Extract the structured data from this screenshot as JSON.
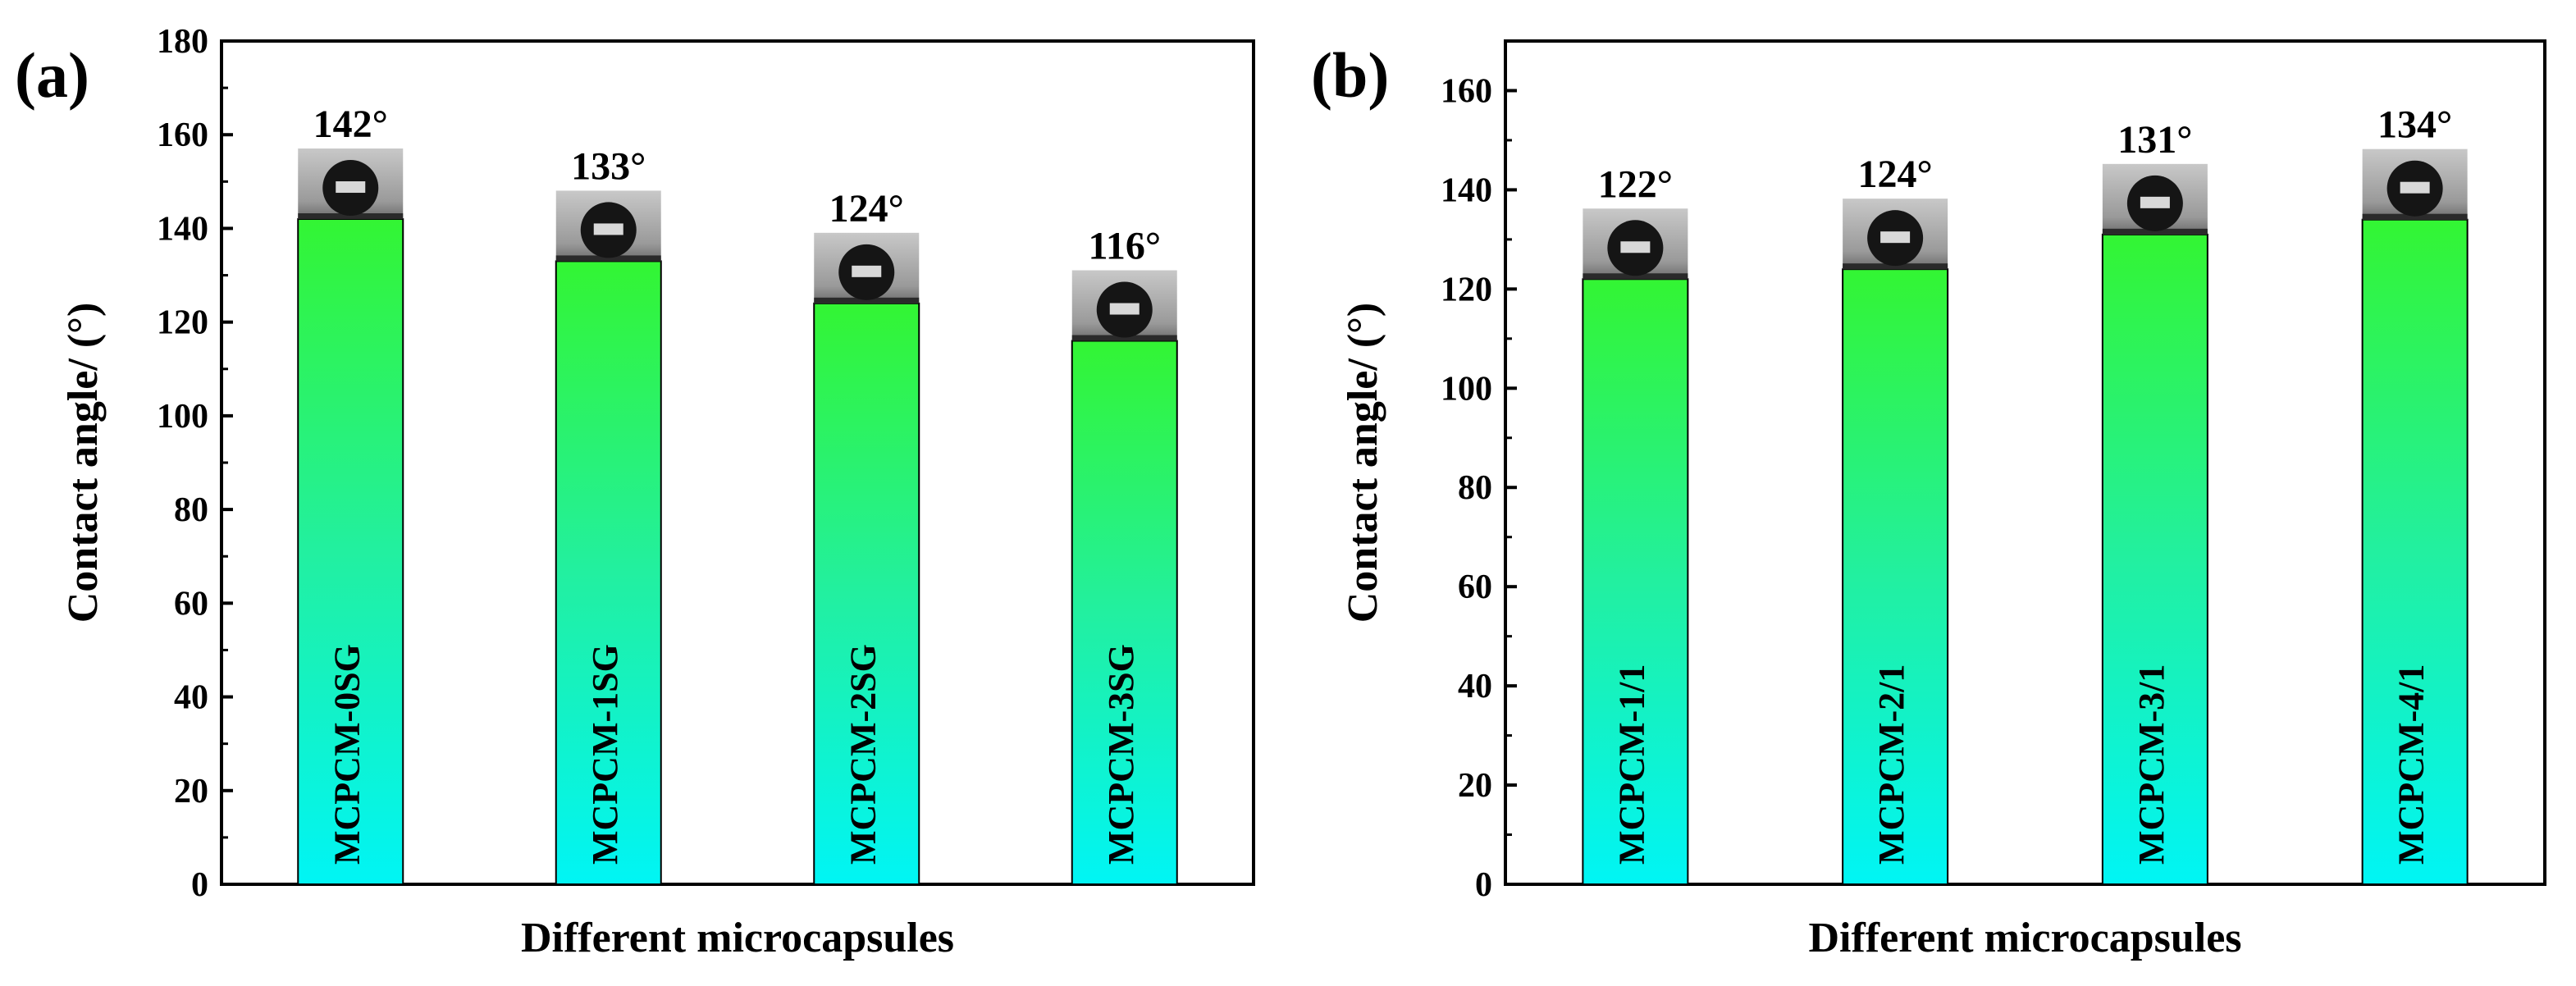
{
  "chart_data": [
    {
      "panel_label": "(a)",
      "type": "bar",
      "xlabel": "Different microcapsules",
      "ylabel": "Contact angle/ (°)",
      "ylim": [
        0,
        180
      ],
      "ytick_step": 20,
      "categories": [
        "MCPCM-0SG",
        "MCPCM-1SG",
        "MCPCM-2SG",
        "MCPCM-3SG"
      ],
      "values": [
        142,
        133,
        124,
        116
      ],
      "value_labels": [
        "142°",
        "133°",
        "124°",
        "116°"
      ],
      "bar_style": "vertical gradient, cyan at base to green at top, with droplet photo insets above each bar"
    },
    {
      "panel_label": "(b)",
      "type": "bar",
      "xlabel": "Different microcapsules",
      "ylabel": "Contact angle/ (°)",
      "ylim": [
        0,
        170
      ],
      "ytick_step": 20,
      "categories": [
        "MCPCM-1/1",
        "MCPCM-2/1",
        "MCPCM-3/1",
        "MCPCM-4/1"
      ],
      "values": [
        122,
        124,
        131,
        134
      ],
      "value_labels": [
        "122°",
        "124°",
        "131°",
        "134°"
      ],
      "bar_style": "vertical gradient, cyan at base to green at top, with droplet photo insets above each bar"
    }
  ],
  "colors": {
    "bar_bottom": "#00f5f5",
    "bar_top": "#33f533",
    "photo_bg": "#a8a8a8",
    "droplet": "#151515",
    "axis": "#000000"
  }
}
